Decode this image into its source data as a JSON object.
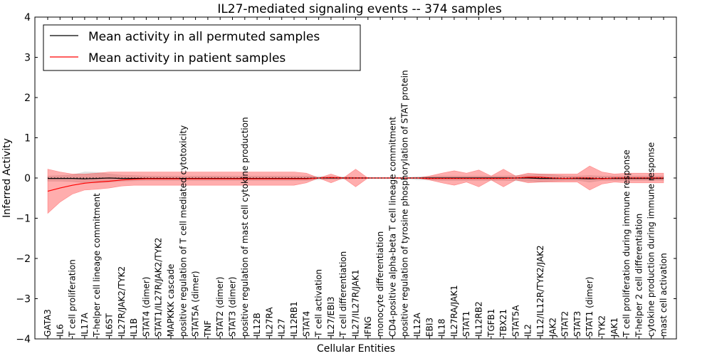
{
  "chart_data": {
    "type": "line",
    "title": "IL27-mediated signaling events -- 374 samples",
    "xlabel": "Cellular Entities",
    "ylabel": "Inferred Activity",
    "ylim": [
      -4,
      4
    ],
    "yticks": [
      -4,
      -3,
      -2,
      -1,
      0,
      1,
      2,
      3,
      4
    ],
    "ytick_labels": [
      "−4",
      "−3",
      "−2",
      "−1",
      "0",
      "1",
      "2",
      "3",
      "4"
    ],
    "grid": false,
    "legend_position": "top-left",
    "categories": [
      "GATA3",
      "IL6",
      "T cell proliferation",
      "IL17A",
      "T-helper cell lineage commitment",
      "IL6ST",
      "IL27R/JAK2/TYK2",
      "IL1B",
      "STAT4 (dimer)",
      "STAT1/IL27R/JAK2/TYK2",
      "MAPKKK cascade",
      "positive regulation of T cell mediated cytotoxicity",
      "STAT5A (dimer)",
      "TNF",
      "STAT2 (dimer)",
      "STAT3 (dimer)",
      "positive regulation of mast cell cytokine production",
      "IL12B",
      "IL27RA",
      "IL27",
      "IL12RB1",
      "STAT4",
      "T cell activation",
      "IL27/EBI3",
      "T cell differentiation",
      "IL27/IL27R/JAK1",
      "IFNG",
      "monocyte differentiation",
      "CD4-positive alpha-beta T cell lineage commitment",
      "positive regulation of tyrosine phosphorylation of STAT protein",
      "IL12A",
      "EBI3",
      "IL18",
      "IL27RA/JAK1",
      "STAT1",
      "IL12RB2",
      "TGFB1",
      "TBX21",
      "STAT5A",
      "IL2",
      "IL12/IL12R/TYK2/JAK2",
      "JAK2",
      "STAT2",
      "STAT3",
      "STAT1 (dimer)",
      "TYK2",
      "JAK1",
      "T cell proliferation during immune response",
      "T-helper 2 cell differentiation",
      "cytokine production during immune response",
      "mast cell activation"
    ],
    "series": [
      {
        "name": "Mean activity in all permuted samples",
        "color": "#000000",
        "band_color": "#bfbfbf",
        "values": [
          -0.01,
          -0.01,
          -0.01,
          -0.02,
          -0.01,
          0.0,
          -0.01,
          -0.01,
          -0.01,
          -0.01,
          -0.01,
          -0.01,
          -0.01,
          -0.01,
          -0.01,
          -0.01,
          -0.01,
          -0.01,
          -0.01,
          -0.01,
          -0.01,
          -0.01,
          0.0,
          0.0,
          0.0,
          0.0,
          0.0,
          0.0,
          0.0,
          0.0,
          0.0,
          0.0,
          0.0,
          0.0,
          0.0,
          0.0,
          0.0,
          0.0,
          0.0,
          0.0,
          -0.01,
          -0.01,
          -0.01,
          -0.01,
          -0.02,
          -0.01,
          -0.01,
          -0.01,
          -0.01,
          -0.01,
          -0.01
        ],
        "band_lower": [
          -0.08,
          -0.08,
          -0.09,
          -0.12,
          -0.12,
          -0.1,
          -0.08,
          -0.07,
          -0.06,
          -0.06,
          -0.06,
          -0.06,
          -0.06,
          -0.06,
          -0.06,
          -0.06,
          -0.06,
          -0.06,
          -0.06,
          -0.06,
          -0.06,
          -0.06,
          -0.04,
          -0.03,
          -0.03,
          -0.02,
          -0.01,
          0.0,
          0.0,
          -0.01,
          -0.04,
          -0.05,
          -0.06,
          -0.06,
          -0.06,
          -0.06,
          -0.06,
          -0.06,
          -0.07,
          -0.08,
          -0.1,
          -0.08,
          -0.06,
          -0.06,
          -0.1,
          -0.06,
          -0.06,
          -0.06,
          -0.06,
          -0.06,
          -0.06
        ],
        "band_upper": [
          0.05,
          0.06,
          0.08,
          0.15,
          0.14,
          0.1,
          0.07,
          0.06,
          0.05,
          0.05,
          0.05,
          0.05,
          0.05,
          0.05,
          0.05,
          0.05,
          0.05,
          0.05,
          0.05,
          0.05,
          0.05,
          0.05,
          0.04,
          0.03,
          0.03,
          0.02,
          0.01,
          0.0,
          0.0,
          0.01,
          0.03,
          0.04,
          0.05,
          0.05,
          0.05,
          0.05,
          0.05,
          0.05,
          0.06,
          0.08,
          0.1,
          0.08,
          0.05,
          0.05,
          0.06,
          0.05,
          0.05,
          0.05,
          0.05,
          0.05,
          0.05
        ]
      },
      {
        "name": "Mean activity in patient samples",
        "color": "#ff0000",
        "band_color": "#ff0000",
        "values": [
          -0.33,
          -0.25,
          -0.18,
          -0.13,
          -0.1,
          -0.08,
          -0.05,
          -0.03,
          -0.02,
          -0.02,
          -0.02,
          -0.02,
          -0.02,
          -0.02,
          -0.02,
          -0.02,
          -0.02,
          -0.02,
          -0.02,
          -0.02,
          -0.02,
          -0.02,
          0.0,
          0.01,
          0.0,
          0.0,
          0.0,
          0.0,
          0.0,
          0.0,
          0.0,
          -0.01,
          -0.01,
          -0.01,
          -0.01,
          -0.01,
          -0.01,
          -0.01,
          0.0,
          0.02,
          0.02,
          0.0,
          -0.01,
          0.0,
          0.0,
          -0.02,
          0.0,
          0.0,
          0.0,
          0.0,
          0.0
        ],
        "band_lower": [
          -0.88,
          -0.6,
          -0.4,
          -0.3,
          -0.28,
          -0.25,
          -0.2,
          -0.18,
          -0.18,
          -0.18,
          -0.18,
          -0.18,
          -0.18,
          -0.18,
          -0.18,
          -0.18,
          -0.18,
          -0.18,
          -0.18,
          -0.18,
          -0.18,
          -0.12,
          0.0,
          -0.12,
          0.0,
          -0.22,
          0.0,
          0.0,
          0.0,
          0.0,
          0.0,
          -0.05,
          -0.12,
          -0.18,
          -0.1,
          -0.22,
          -0.05,
          -0.22,
          -0.05,
          -0.12,
          -0.1,
          -0.1,
          -0.1,
          -0.1,
          -0.3,
          -0.15,
          -0.1,
          -0.12,
          -0.12,
          -0.12,
          -0.12
        ],
        "band_upper": [
          0.22,
          0.15,
          0.1,
          0.1,
          0.12,
          0.15,
          0.15,
          0.15,
          0.15,
          0.15,
          0.15,
          0.15,
          0.15,
          0.15,
          0.15,
          0.15,
          0.15,
          0.15,
          0.15,
          0.15,
          0.15,
          0.12,
          0.0,
          0.1,
          0.0,
          0.22,
          0.0,
          0.0,
          0.0,
          0.0,
          0.0,
          0.05,
          0.12,
          0.18,
          0.12,
          0.2,
          0.05,
          0.22,
          0.05,
          0.12,
          0.1,
          0.1,
          0.1,
          0.1,
          0.3,
          0.15,
          0.1,
          0.12,
          0.12,
          0.12,
          0.12
        ]
      }
    ]
  }
}
